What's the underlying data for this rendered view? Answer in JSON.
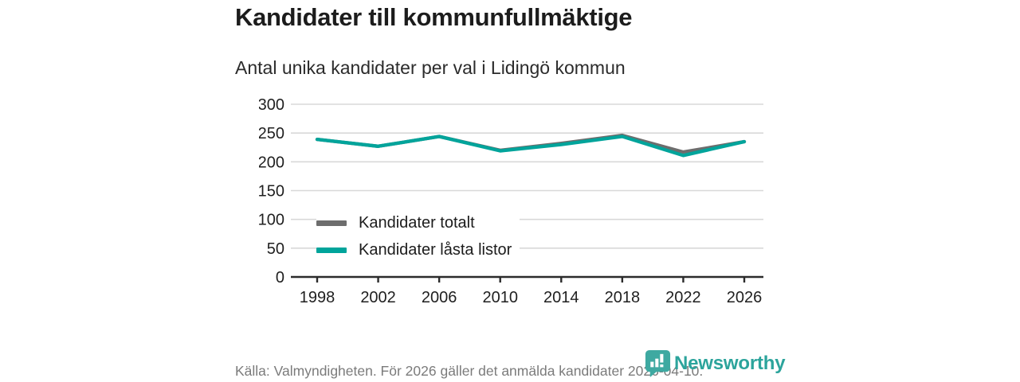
{
  "header": {
    "title": "Kandidater till kommunfullmäktige",
    "subtitle": "Antal unika kandidater per val i Lidingö kommun"
  },
  "chart_data": {
    "type": "line",
    "title": "Kandidater till kommunfullmäktige",
    "subtitle": "Antal unika kandidater per val i Lidingö kommun",
    "x": [
      1998,
      2002,
      2006,
      2010,
      2014,
      2018,
      2022,
      2026
    ],
    "series": [
      {
        "name": "Kandidater totalt",
        "color": "#6d6d6d",
        "values": [
          239,
          227,
          244,
          220,
          232,
          246,
          217,
          235
        ]
      },
      {
        "name": "Kandidater låsta listor",
        "color": "#00a49b",
        "values": [
          239,
          227,
          244,
          219,
          230,
          244,
          211,
          235
        ]
      }
    ],
    "xlabel": "",
    "ylabel": "",
    "ylim": [
      0,
      300
    ],
    "yticks": [
      0,
      50,
      100,
      150,
      200,
      250,
      300
    ],
    "grid": true,
    "legend_position": "inside-middle-left",
    "axis_color": "#2b2b2b",
    "gridline_color": "#d8d8d8"
  },
  "footer": {
    "source": "Källa: Valmyndigheten. För 2026 gäller det anmälda kandidater 2026-04-10.",
    "brand": "Newsworthy",
    "brand_color": "#2ca49c"
  }
}
